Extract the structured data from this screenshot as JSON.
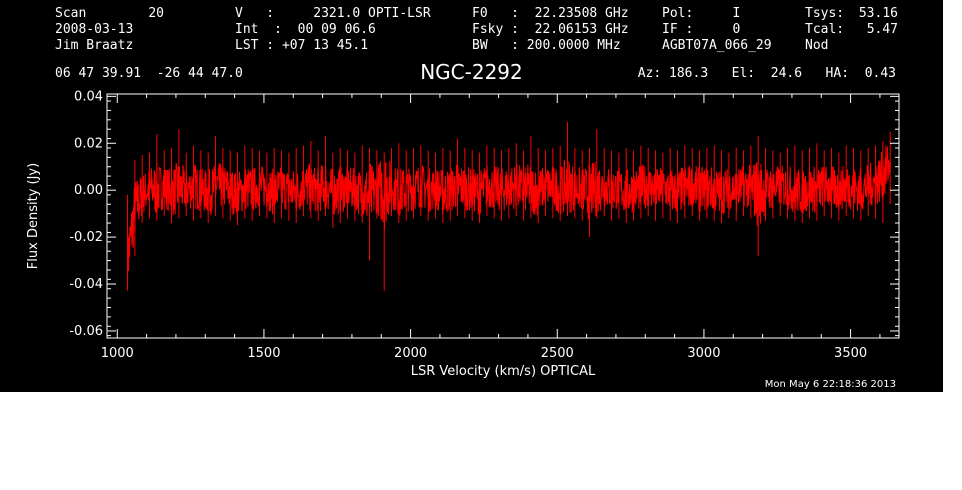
{
  "header": {
    "scan_label": "Scan",
    "scan_value": "20",
    "date": "2008-03-13",
    "observer": "Jim Braatz",
    "velocity": "V   :     2321.0 OPTI-LSR",
    "int_time": "Int  :  00 09 06.6",
    "lst": "LST : +07 13 45.1",
    "f0": "F0   :  22.23508 GHz",
    "fsky": "Fsky :  22.06153 GHz",
    "bw": "BW   : 200.0000 MHz",
    "pol": "Pol:     I",
    "if_num": "IF :     0",
    "project": "AGBT07A_066_29",
    "tsys_label": "Tsys:",
    "tsys_value": "53.16",
    "tcal_label": "Tcal:",
    "tcal_value": "5.47",
    "mode": "Nod",
    "coords": "06 47 39.91  -26 44 47.0",
    "source": "NGC-2292",
    "az_el_ha": "Az: 186.3   El:  24.6   HA:  0.43"
  },
  "timestamp": "Mon May  6 22:18:36 2013",
  "colors": {
    "background": "#000000",
    "foreground": "#ffffff",
    "trace": "#ff0000"
  },
  "chart_data": {
    "type": "line",
    "title": "NGC-2292",
    "xlabel": "LSR Velocity (km/s) OPTICAL",
    "ylabel": "Flux Density (Jy)",
    "xlim": [
      965,
      3665
    ],
    "ylim": [
      -0.063,
      0.041
    ],
    "xticks": [
      1000,
      1500,
      2000,
      2500,
      3000,
      3500
    ],
    "yticks": [
      -0.06,
      -0.04,
      -0.02,
      0.0,
      0.02,
      0.04
    ],
    "ytick_labels": [
      "-0.06",
      "-0.04",
      "-0.02",
      "0.00",
      "0.02",
      "0.04"
    ],
    "grid": false,
    "legend": "none",
    "series": [
      {
        "x": [
          1035,
          1060,
          1085,
          1110,
          1135,
          1160,
          1185,
          1210,
          1235,
          1260,
          1285,
          1310,
          1335,
          1360,
          1385,
          1410,
          1435,
          1460,
          1485,
          1510,
          1535,
          1560,
          1585,
          1610,
          1635,
          1660,
          1685,
          1710,
          1735,
          1760,
          1785,
          1810,
          1835,
          1860,
          1885,
          1910,
          1935,
          1960,
          1985,
          2010,
          2035,
          2060,
          2085,
          2110,
          2135,
          2160,
          2185,
          2210,
          2235,
          2260,
          2285,
          2310,
          2335,
          2360,
          2385,
          2410,
          2435,
          2460,
          2485,
          2510,
          2535,
          2560,
          2585,
          2610,
          2635,
          2660,
          2685,
          2710,
          2735,
          2760,
          2785,
          2810,
          2835,
          2860,
          2885,
          2910,
          2935,
          2960,
          2985,
          3010,
          3035,
          3060,
          3085,
          3110,
          3135,
          3160,
          3185,
          3210,
          3235,
          3260,
          3285,
          3310,
          3335,
          3360,
          3385,
          3410,
          3435,
          3460,
          3485,
          3510,
          3535,
          3560,
          3585,
          3610,
          3635
        ],
        "y": [
          -0.03,
          -0.008,
          -0.002,
          0.001,
          0.0,
          0.002,
          -0.001,
          0.001,
          0.0,
          0.002,
          0.0,
          -0.001,
          0.001,
          0.002,
          0.0,
          -0.002,
          0.001,
          0.0,
          0.002,
          0.001,
          -0.001,
          0.001,
          0.0,
          -0.001,
          0.002,
          0.001,
          0.0,
          0.002,
          -0.001,
          0.0,
          0.001,
          0.0,
          -0.001,
          -0.003,
          0.0,
          0.001,
          0.002,
          -0.001,
          0.0,
          0.001,
          0.002,
          0.0,
          0.001,
          -0.001,
          0.0,
          0.002,
          0.001,
          0.0,
          -0.001,
          0.002,
          0.001,
          0.0,
          0.001,
          0.002,
          0.0,
          0.001,
          -0.001,
          0.002,
          0.001,
          0.0,
          0.002,
          0.001,
          0.0,
          -0.001,
          0.001,
          0.002,
          0.0,
          0.001,
          -0.001,
          0.0,
          0.001,
          0.002,
          0.0,
          0.001,
          0.0,
          -0.001,
          0.001,
          0.002,
          0.0,
          0.001,
          0.0,
          -0.001,
          0.001,
          0.0,
          0.002,
          0.001,
          -0.001,
          0.0,
          0.001,
          0.002,
          0.001,
          0.0,
          -0.001,
          0.001,
          0.0,
          0.002,
          0.001,
          0.0,
          0.002,
          0.001,
          0.0,
          0.002,
          0.003,
          0.006,
          0.012
        ],
        "min": [
          -0.042,
          -0.028,
          -0.014,
          -0.012,
          -0.013,
          -0.011,
          -0.014,
          -0.012,
          -0.011,
          -0.013,
          -0.012,
          -0.014,
          -0.011,
          -0.012,
          -0.013,
          -0.015,
          -0.012,
          -0.013,
          -0.011,
          -0.012,
          -0.014,
          -0.012,
          -0.013,
          -0.014,
          -0.011,
          -0.012,
          -0.013,
          -0.011,
          -0.016,
          -0.014,
          -0.012,
          -0.013,
          -0.014,
          -0.03,
          -0.012,
          -0.043,
          -0.011,
          -0.014,
          -0.013,
          -0.012,
          -0.011,
          -0.013,
          -0.012,
          -0.014,
          -0.013,
          -0.011,
          -0.012,
          -0.013,
          -0.014,
          -0.011,
          -0.012,
          -0.013,
          -0.012,
          -0.011,
          -0.013,
          -0.012,
          -0.014,
          -0.011,
          -0.012,
          -0.013,
          -0.011,
          -0.012,
          -0.013,
          -0.02,
          -0.012,
          -0.011,
          -0.013,
          -0.012,
          -0.014,
          -0.013,
          -0.012,
          -0.011,
          -0.013,
          -0.012,
          -0.013,
          -0.014,
          -0.012,
          -0.011,
          -0.013,
          -0.012,
          -0.013,
          -0.014,
          -0.012,
          -0.013,
          -0.011,
          -0.012,
          -0.028,
          -0.013,
          -0.012,
          -0.011,
          -0.012,
          -0.013,
          -0.014,
          -0.012,
          -0.013,
          -0.011,
          -0.012,
          -0.013,
          -0.011,
          -0.012,
          -0.013,
          -0.011,
          -0.012,
          -0.014,
          -0.006
        ],
        "max": [
          -0.002,
          0.013,
          0.015,
          0.016,
          0.024,
          0.017,
          0.018,
          0.026,
          0.016,
          0.019,
          0.017,
          0.016,
          0.023,
          0.018,
          0.017,
          0.016,
          0.019,
          0.018,
          0.017,
          0.016,
          0.018,
          0.017,
          0.016,
          0.018,
          0.019,
          0.021,
          0.017,
          0.023,
          0.016,
          0.018,
          0.017,
          0.016,
          0.019,
          0.018,
          0.017,
          0.016,
          0.018,
          0.02,
          0.017,
          0.018,
          0.019,
          0.017,
          0.016,
          0.018,
          0.017,
          0.022,
          0.018,
          0.017,
          0.016,
          0.019,
          0.018,
          0.017,
          0.018,
          0.02,
          0.017,
          0.023,
          0.018,
          0.017,
          0.018,
          0.019,
          0.029,
          0.018,
          0.017,
          0.018,
          0.026,
          0.018,
          0.017,
          0.016,
          0.018,
          0.017,
          0.019,
          0.018,
          0.017,
          0.016,
          0.018,
          0.017,
          0.019,
          0.018,
          0.017,
          0.018,
          0.019,
          0.017,
          0.016,
          0.018,
          0.017,
          0.019,
          0.023,
          0.018,
          0.017,
          0.016,
          0.018,
          0.019,
          0.017,
          0.018,
          0.02,
          0.017,
          0.018,
          0.016,
          0.019,
          0.018,
          0.017,
          0.018,
          0.019,
          0.021,
          0.025
        ]
      }
    ]
  }
}
